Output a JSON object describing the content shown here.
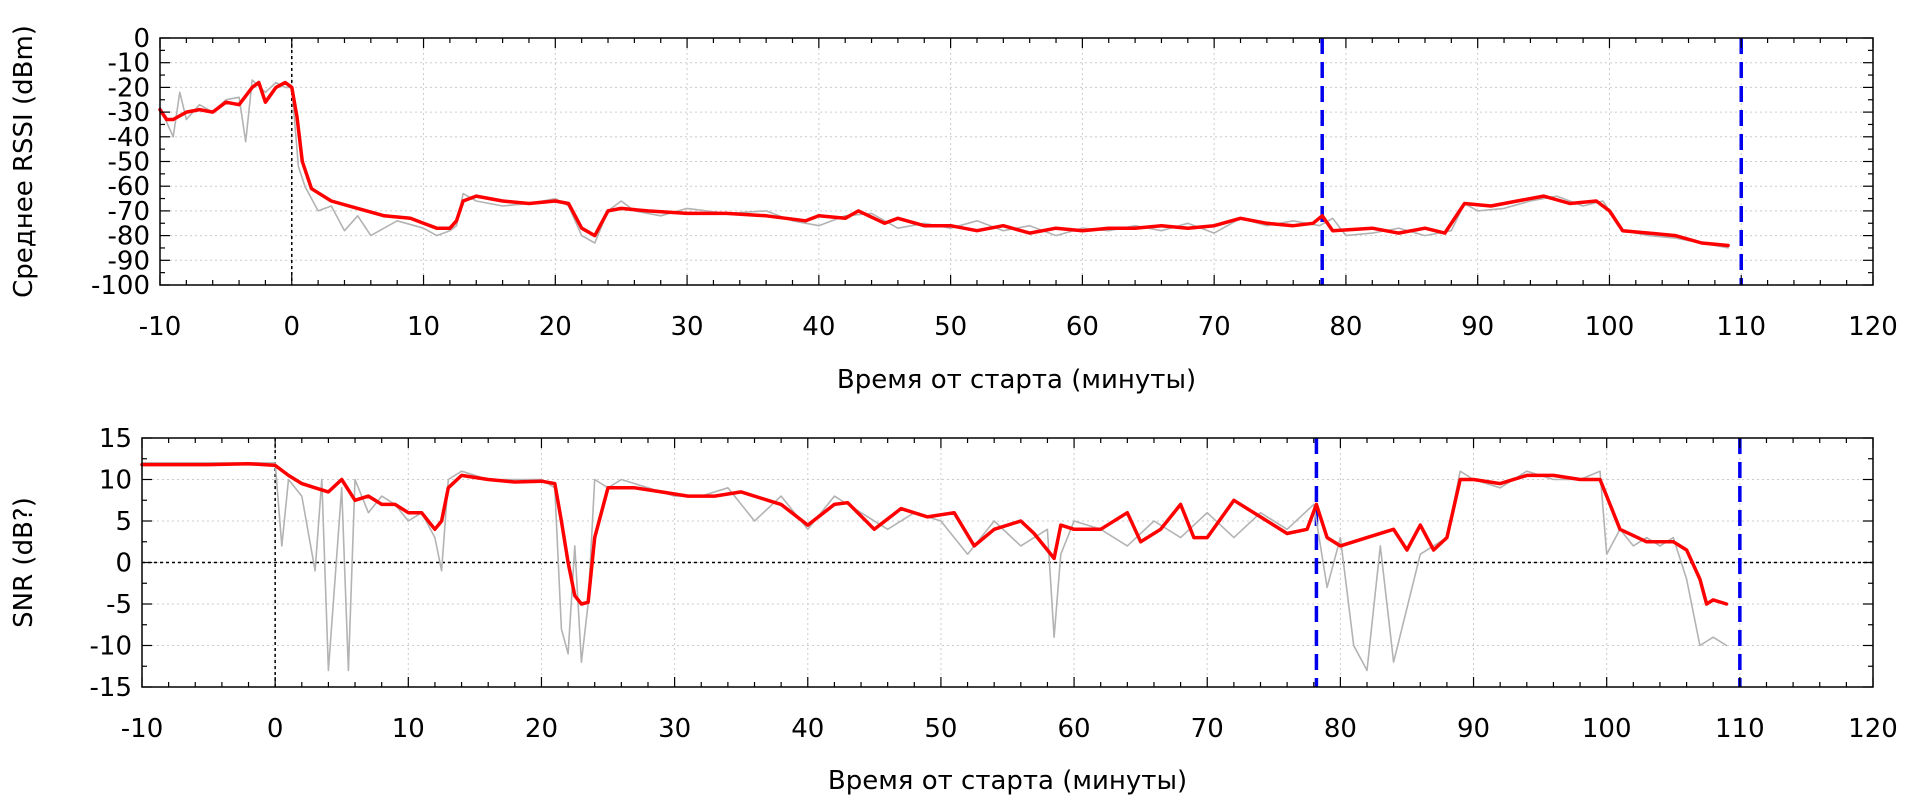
{
  "chart_data": [
    {
      "type": "line",
      "xlabel": "Время от старта (минуты)",
      "ylabel": "Среднее RSSI (dBm)",
      "xlim": [
        -10,
        120
      ],
      "ylim": [
        -100,
        0
      ],
      "xticks": [
        -10,
        0,
        10,
        20,
        30,
        40,
        50,
        60,
        70,
        80,
        90,
        100,
        110,
        120
      ],
      "xtick_labels": [
        "-10",
        "0",
        "10",
        "20",
        "30",
        "40",
        "50",
        "60",
        "70",
        "80",
        "90",
        "100",
        "110",
        "120"
      ],
      "yticks": [
        0,
        -10,
        -20,
        -30,
        -40,
        -50,
        -60,
        -70,
        -80,
        -90,
        -100
      ],
      "ytick_labels": [
        "0",
        "-10",
        "-20",
        "-30",
        "-40",
        "-50",
        "-60",
        "-70",
        "-80",
        "-90",
        "-100"
      ],
      "grid": true,
      "vlines": [
        {
          "x": 0,
          "style": "dotted",
          "color": "#000000"
        },
        {
          "x": 78.2,
          "style": "dashed",
          "color": "#0000ee"
        },
        {
          "x": 110,
          "style": "dashed",
          "color": "#0000ee"
        }
      ],
      "hlines": [],
      "series": [
        {
          "role": "raw",
          "color": "#b3b3b3",
          "x": [
            -10,
            -9,
            -8.5,
            -8,
            -7,
            -6,
            -5,
            -4,
            -3.5,
            -3,
            -2,
            -1.2,
            -0.5,
            0,
            0.5,
            1,
            2,
            3,
            4,
            5,
            6,
            8,
            10,
            11,
            12,
            12.5,
            13,
            14,
            16,
            18,
            20,
            21,
            22,
            23,
            24,
            25,
            26,
            28,
            30,
            33,
            36,
            38,
            40,
            42,
            44,
            46,
            48,
            50,
            52,
            54,
            56,
            58,
            60,
            62,
            64,
            66,
            68,
            70,
            72,
            74,
            76,
            78,
            79,
            80,
            82,
            84,
            86,
            88,
            89,
            90,
            92,
            94,
            96,
            98,
            99.5,
            101,
            103,
            105,
            107,
            108,
            109
          ],
          "values": [
            -28,
            -40,
            -22,
            -33,
            -27,
            -30,
            -25,
            -24,
            -42,
            -17,
            -22,
            -18,
            -20,
            -20,
            -52,
            -60,
            -70,
            -68,
            -78,
            -72,
            -80,
            -74,
            -77,
            -80,
            -78,
            -76,
            -63,
            -66,
            -68,
            -67,
            -65,
            -68,
            -80,
            -83,
            -70,
            -66,
            -70,
            -72,
            -69,
            -71,
            -70,
            -74,
            -76,
            -72,
            -71,
            -77,
            -75,
            -77,
            -74,
            -78,
            -76,
            -80,
            -77,
            -78,
            -76,
            -78,
            -75,
            -79,
            -73,
            -76,
            -74,
            -76,
            -73,
            -80,
            -79,
            -77,
            -80,
            -78,
            -67,
            -70,
            -69,
            -66,
            -64,
            -68,
            -66,
            -78,
            -80,
            -81,
            -83,
            -84,
            -85
          ]
        },
        {
          "role": "smoothed",
          "color": "#ff0000",
          "x": [
            -10,
            -9.5,
            -9,
            -8,
            -7,
            -6,
            -5,
            -4,
            -3,
            -2.5,
            -2,
            -1.2,
            -0.5,
            0,
            0.4,
            0.8,
            1.5,
            3,
            5,
            7,
            9,
            10,
            11,
            12,
            12.5,
            13,
            14,
            16,
            18,
            20,
            21,
            22,
            23,
            24,
            25,
            27,
            30,
            33,
            36,
            39,
            40,
            42,
            43,
            45,
            46,
            48,
            50,
            52,
            54,
            56,
            58,
            60,
            62,
            64,
            66,
            68,
            70,
            72,
            74,
            76,
            77.5,
            78.2,
            79,
            82,
            84,
            86,
            87.5,
            89,
            91,
            93,
            95,
            97,
            99,
            100,
            101,
            103,
            105,
            107,
            109
          ],
          "values": [
            -29,
            -33,
            -33,
            -30,
            -29,
            -30,
            -26,
            -27,
            -20,
            -18,
            -26,
            -20,
            -18,
            -20,
            -32,
            -50,
            -61,
            -66,
            -69,
            -72,
            -73,
            -75,
            -77,
            -77,
            -74,
            -66,
            -64,
            -66,
            -67,
            -66,
            -67,
            -77,
            -80,
            -70,
            -69,
            -70,
            -71,
            -71,
            -72,
            -74,
            -72,
            -73,
            -70,
            -75,
            -73,
            -76,
            -76,
            -78,
            -76,
            -79,
            -77,
            -78,
            -77,
            -77,
            -76,
            -77,
            -76,
            -73,
            -75,
            -76,
            -75,
            -72,
            -78,
            -77,
            -79,
            -77,
            -79,
            -67,
            -68,
            -66,
            -64,
            -67,
            -66,
            -70,
            -78,
            -79,
            -80,
            -83,
            -84
          ]
        }
      ]
    },
    {
      "type": "line",
      "xlabel": "Время от старта (минуты)",
      "ylabel": "SNR (dB?)",
      "xlim": [
        -10,
        120
      ],
      "ylim": [
        -15,
        15
      ],
      "xticks": [
        -10,
        0,
        10,
        20,
        30,
        40,
        50,
        60,
        70,
        80,
        90,
        100,
        110,
        120
      ],
      "xtick_labels": [
        "-10",
        "0",
        "10",
        "20",
        "30",
        "40",
        "50",
        "60",
        "70",
        "80",
        "90",
        "100",
        "110",
        "120"
      ],
      "yticks": [
        15,
        10,
        5,
        0,
        -5,
        -10,
        -15
      ],
      "ytick_labels": [
        "15",
        "10",
        "5",
        "0",
        "-5",
        "-10",
        "-15"
      ],
      "grid": true,
      "vlines": [
        {
          "x": 0,
          "style": "dotted",
          "color": "#000000"
        },
        {
          "x": 78.2,
          "style": "dashed",
          "color": "#0000ee"
        },
        {
          "x": 110,
          "style": "dashed",
          "color": "#0000ee"
        }
      ],
      "hlines": [
        {
          "y": 0,
          "style": "dotted",
          "color": "#000000"
        }
      ],
      "series": [
        {
          "role": "raw",
          "color": "#b3b3b3",
          "x": [
            -10,
            -5,
            -2,
            0,
            0.5,
            1,
            2,
            3,
            3.5,
            4,
            5,
            5.5,
            6,
            7,
            8,
            9,
            10,
            11,
            12,
            12.5,
            13,
            14,
            16,
            18,
            20,
            21,
            21.5,
            22,
            22.5,
            23,
            23.5,
            24,
            25,
            26,
            28,
            30,
            32,
            34,
            36,
            38,
            40,
            42,
            44,
            46,
            48,
            50,
            52,
            54,
            56,
            58,
            58.5,
            59,
            60,
            62,
            64,
            66,
            68,
            70,
            72,
            74,
            76,
            78,
            79,
            80,
            81,
            82,
            83,
            84,
            86,
            88,
            89,
            90,
            92,
            94,
            96,
            98,
            99.5,
            100,
            101,
            102,
            103,
            104,
            105,
            106,
            107,
            108,
            109
          ],
          "values": [
            12,
            12,
            12,
            12,
            2,
            10,
            8,
            -1,
            10,
            -13,
            9,
            -13,
            10,
            6,
            8,
            7,
            5,
            6,
            3,
            -1,
            10,
            11,
            10,
            10,
            10,
            9,
            -8,
            -11,
            2,
            -12,
            -5,
            10,
            9,
            10,
            9,
            8,
            8,
            9,
            5,
            8,
            4,
            8,
            6,
            4,
            6,
            5,
            1,
            5,
            2,
            4,
            -9,
            1,
            5,
            4,
            2,
            5,
            3,
            6,
            3,
            6,
            4,
            7,
            -3,
            3,
            -10,
            -13,
            2,
            -12,
            1,
            3,
            11,
            10,
            9,
            11,
            10,
            10,
            11,
            1,
            4,
            2,
            3,
            2,
            3,
            -2,
            -10,
            -9,
            -10
          ]
        },
        {
          "role": "smoothed",
          "color": "#ff0000",
          "x": [
            -10,
            -5,
            -2,
            0,
            1,
            2,
            3,
            4,
            5,
            6,
            7,
            8,
            9,
            10,
            11,
            12,
            12.5,
            13,
            14,
            16,
            18,
            20,
            21,
            21.5,
            22,
            22.5,
            23,
            23.5,
            24,
            25,
            27,
            29,
            31,
            33,
            35,
            37,
            38,
            40,
            42,
            43,
            45,
            47,
            49,
            51,
            52.5,
            54,
            56,
            57,
            58.5,
            59,
            60,
            62,
            64,
            65,
            66.5,
            68,
            69,
            70,
            72,
            74,
            76,
            77.5,
            78.2,
            79,
            80,
            82,
            84,
            85,
            86,
            87,
            88,
            89,
            90,
            92,
            94,
            96,
            98,
            99.5,
            100,
            101,
            103,
            105,
            106,
            107,
            107.5,
            108,
            109
          ],
          "values": [
            11.8,
            11.8,
            11.9,
            11.7,
            10.5,
            9.5,
            9.0,
            8.5,
            10.0,
            7.5,
            8.0,
            7.0,
            7.0,
            6.0,
            6.0,
            4.0,
            5.0,
            9.0,
            10.5,
            10.0,
            9.7,
            9.8,
            9.5,
            5.0,
            0.0,
            -4.0,
            -5.0,
            -4.8,
            3.0,
            9.0,
            9.0,
            8.5,
            8.0,
            8.0,
            8.5,
            7.5,
            7.0,
            4.5,
            7.0,
            7.2,
            4.0,
            6.5,
            5.5,
            6.0,
            2.0,
            4.0,
            5.0,
            3.5,
            0.5,
            4.5,
            4.0,
            4.0,
            6.0,
            2.5,
            4.0,
            7.0,
            3.0,
            3.0,
            7.5,
            5.5,
            3.5,
            4.0,
            7.0,
            3.0,
            2.0,
            3.0,
            4.0,
            1.5,
            4.5,
            1.5,
            3.0,
            10.0,
            10.0,
            9.5,
            10.5,
            10.5,
            10.0,
            10.0,
            8.0,
            4.0,
            2.5,
            2.5,
            1.5,
            -2.0,
            -5.0,
            -4.5,
            -5.0
          ]
        }
      ]
    }
  ]
}
